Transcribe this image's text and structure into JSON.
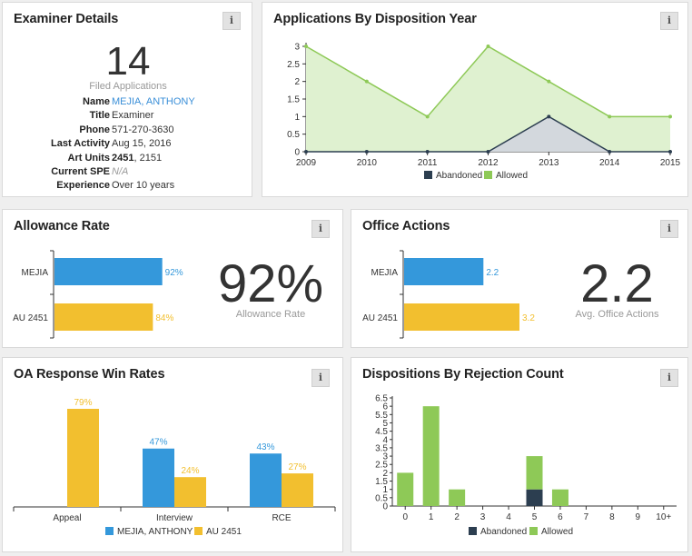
{
  "colors": {
    "blue": "#3498db",
    "yellow": "#f2bf2f",
    "green": "#8ec957",
    "green_fill": "#dff1d0",
    "dark": "#2c3e50",
    "gray_fill": "#d3d8dd",
    "link": "#3a8fd8"
  },
  "info_label": "i",
  "examiner": {
    "title": "Examiner Details",
    "count": "14",
    "count_label": "Filed Applications",
    "fields": [
      {
        "key": "Name",
        "value": "MEJIA, ANTHONY"
      },
      {
        "key": "Title",
        "value": "Examiner"
      },
      {
        "key": "Phone",
        "value": "571-270-3630"
      },
      {
        "key": "Last Activity",
        "value": "Aug 15, 2016"
      },
      {
        "key": "Art Units",
        "value": "2451",
        "value_rest": ", 2151"
      },
      {
        "key": "Current SPE",
        "value": "N/A"
      },
      {
        "key": "Experience",
        "value": "Over 10 years"
      }
    ]
  },
  "disposition_year": {
    "title": "Applications By Disposition Year",
    "chart_data": {
      "type": "area",
      "x": [
        "2009",
        "2010",
        "2011",
        "2012",
        "2013",
        "2014",
        "2015"
      ],
      "y_ticks": [
        "0",
        "0.5",
        "1",
        "1.5",
        "2",
        "2.5",
        "3"
      ],
      "ylim": [
        0,
        3
      ],
      "series": [
        {
          "name": "Abandoned",
          "values": [
            0,
            0,
            0,
            0,
            1,
            0,
            0
          ]
        },
        {
          "name": "Allowed",
          "values": [
            3,
            2,
            1,
            3,
            2,
            1,
            1
          ]
        }
      ],
      "legend": "bottom"
    }
  },
  "allowance": {
    "title": "Allowance Rate",
    "big": "92%",
    "big_label": "Allowance Rate",
    "chart_data": {
      "type": "bar",
      "orientation": "horizontal",
      "categories": [
        "MEJIA",
        "AU 2451"
      ],
      "values": [
        92,
        84
      ],
      "labels": [
        "92%",
        "84%"
      ]
    }
  },
  "office_actions": {
    "title": "Office Actions",
    "big": "2.2",
    "big_label": "Avg. Office Actions",
    "chart_data": {
      "type": "bar",
      "orientation": "horizontal",
      "categories": [
        "MEJIA",
        "AU 2451"
      ],
      "values": [
        2.2,
        3.2
      ],
      "labels": [
        "2.2",
        "3.2"
      ]
    }
  },
  "oa_win": {
    "title": "OA Response Win Rates",
    "chart_data": {
      "type": "bar",
      "categories": [
        "Appeal",
        "Interview",
        "RCE"
      ],
      "series": [
        {
          "name": "MEJIA, ANTHONY",
          "values": [
            null,
            47,
            43
          ],
          "labels": [
            "",
            "47%",
            "43%"
          ]
        },
        {
          "name": "AU 2451",
          "values": [
            79,
            24,
            27
          ],
          "labels": [
            "79%",
            "24%",
            "27%"
          ]
        }
      ],
      "legend": "bottom"
    }
  },
  "rejection": {
    "title": "Dispositions By Rejection Count",
    "chart_data": {
      "type": "bar",
      "stacked": true,
      "categories": [
        "0",
        "1",
        "2",
        "3",
        "4",
        "5",
        "6",
        "7",
        "8",
        "9",
        "10+"
      ],
      "y_ticks": [
        "0",
        "0.5",
        "1",
        "1.5",
        "2",
        "2.5",
        "3",
        "3.5",
        "4",
        "4.5",
        "5",
        "5.5",
        "6",
        "6.5"
      ],
      "ylim": [
        0,
        6.5
      ],
      "series": [
        {
          "name": "Abandoned",
          "values": [
            0,
            0,
            0,
            0,
            0,
            1,
            0,
            0,
            0,
            0,
            0
          ]
        },
        {
          "name": "Allowed",
          "values": [
            2,
            6,
            1,
            0,
            0,
            2,
            1,
            0,
            0,
            0,
            0
          ]
        }
      ],
      "legend": "bottom"
    }
  }
}
